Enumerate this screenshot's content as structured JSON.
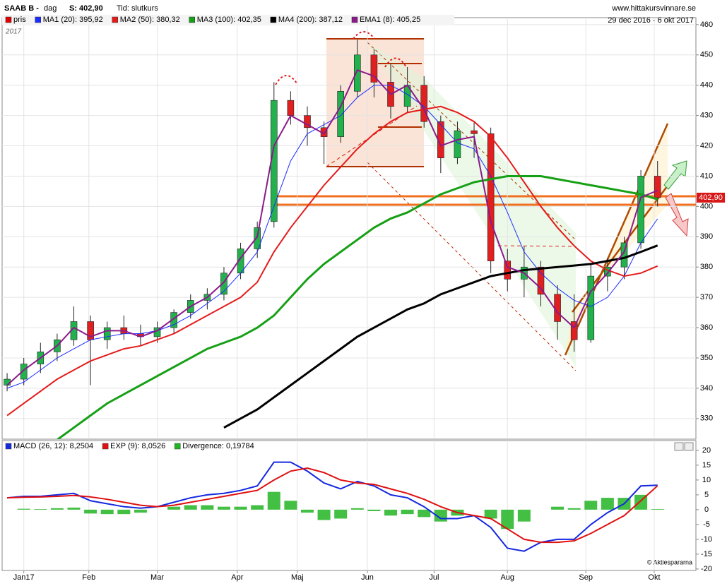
{
  "header": {
    "symbol": "SAAB B -",
    "period": "dag",
    "last": "S: 402,90",
    "mode": "Tid: slutkurs",
    "site": "www.hittakursvinnare.se",
    "range": "29 dec 2016 - 6 okt 2017",
    "year": "2017",
    "credit": "© Aktiespararna",
    "price_tag": "402,90"
  },
  "chart_data": [
    {
      "type": "candlestick",
      "x": [
        0,
        1,
        2,
        3,
        4,
        5,
        6,
        7,
        8,
        9,
        10,
        11,
        12,
        13,
        14,
        15,
        16,
        17,
        18,
        19,
        20,
        21,
        22,
        23,
        24,
        25,
        26,
        27,
        28,
        29,
        30,
        31,
        32,
        33,
        34,
        35,
        36,
        37,
        38,
        39
      ],
      "xlim": [
        -0.3,
        41.3
      ],
      "ylim": [
        323.2,
        462.3
      ],
      "yticks": [
        330,
        340,
        350,
        360,
        370,
        380,
        390,
        400,
        410,
        420,
        430,
        440,
        450,
        460
      ],
      "xticks": [
        {
          "value": 1,
          "label": "Jan17"
        },
        {
          "value": 4.9,
          "label": "Feb"
        },
        {
          "value": 9,
          "label": "Mar"
        },
        {
          "value": 13.8,
          "label": "Apr"
        },
        {
          "value": 17.4,
          "label": "Maj"
        },
        {
          "value": 21.6,
          "label": "Jun"
        },
        {
          "value": 25.6,
          "label": "Jul"
        },
        {
          "value": 30,
          "label": "Aug"
        },
        {
          "value": 34.7,
          "label": "Sep"
        },
        {
          "value": 38.8,
          "label": "Okt"
        }
      ],
      "grid": true,
      "series": [
        {
          "name": "pris",
          "color": "#e00000",
          "up_color": "#22b14c",
          "down_color": "#e02020",
          "open": [
            341,
            343,
            348,
            352,
            356,
            362,
            356,
            360,
            358,
            357,
            360,
            365,
            369,
            371,
            378,
            386,
            395,
            435,
            430,
            426,
            423,
            438,
            450,
            441,
            433,
            440,
            428,
            416,
            425,
            424,
            382,
            376,
            380,
            371,
            362,
            356,
            377,
            380,
            388,
            410
          ],
          "high": [
            345,
            350,
            355,
            358,
            367,
            364,
            362,
            364,
            361,
            362,
            366,
            371,
            373,
            380,
            388,
            395,
            441,
            438,
            433,
            428,
            440,
            455,
            452,
            447,
            446,
            443,
            430,
            428,
            428,
            426,
            386,
            387,
            382,
            374,
            371,
            381,
            383,
            390,
            412,
            415
          ],
          "low": [
            339,
            341,
            345,
            349,
            354,
            341,
            353,
            356,
            354,
            355,
            358,
            363,
            366,
            369,
            376,
            383,
            393,
            427,
            420,
            414,
            421,
            436,
            436,
            429,
            431,
            426,
            411,
            414,
            416,
            378,
            372,
            370,
            367,
            356,
            352,
            355,
            372,
            376,
            386,
            400
          ],
          "close": [
            343,
            348,
            352,
            356,
            362,
            356,
            360,
            358,
            357,
            360,
            365,
            369,
            371,
            378,
            386,
            393,
            435,
            430,
            426,
            423,
            438,
            450,
            441,
            433,
            440,
            428,
            416,
            425,
            424,
            382,
            376,
            380,
            371,
            362,
            356,
            377,
            380,
            388,
            410,
            402.9
          ]
        },
        {
          "name": "MA1 (20): 395,92",
          "color": "#1a2cff",
          "width": 1,
          "values": [
            340,
            342,
            346,
            350,
            353,
            356,
            357,
            358,
            358,
            359,
            361,
            364,
            368,
            372,
            378,
            385,
            400,
            415,
            424,
            427,
            430,
            436,
            440,
            440,
            437,
            433,
            427,
            421,
            419,
            410,
            398,
            385,
            378,
            373,
            369,
            367,
            370,
            377,
            388,
            395.92
          ]
        },
        {
          "name": "MA2 (50): 380,32",
          "color": "#e51b1b",
          "width": 2,
          "values": [
            331,
            335,
            339,
            343,
            346,
            349,
            351,
            353,
            354,
            356,
            358,
            361,
            364,
            367,
            370,
            375,
            385,
            393,
            400,
            407,
            413,
            419,
            424,
            428,
            431,
            432,
            433,
            431,
            428,
            423,
            416,
            408,
            400,
            393,
            387,
            382,
            379,
            377,
            378,
            380.32
          ]
        },
        {
          "name": "MA3 (100): 402,35",
          "color": "#16a016",
          "width": 3,
          "values": [
            null,
            null,
            null,
            323,
            327,
            331,
            335,
            338,
            341,
            344,
            347,
            350,
            353,
            355,
            357,
            360,
            364,
            370,
            376,
            381,
            385,
            389,
            393,
            396,
            398,
            401,
            404,
            406,
            408,
            409,
            410,
            410,
            410,
            409,
            408,
            407,
            406,
            405,
            404,
            402.35
          ]
        },
        {
          "name": "MA4 (200): 387,12",
          "color": "#000000",
          "width": 3,
          "values": [
            null,
            null,
            null,
            null,
            null,
            null,
            null,
            null,
            null,
            null,
            null,
            null,
            null,
            327,
            330,
            333,
            337,
            341,
            345,
            349,
            353,
            357,
            360,
            363,
            366,
            368,
            371,
            373,
            375,
            377,
            378,
            379,
            379.5,
            380,
            380.5,
            381,
            382,
            383,
            385,
            387.12
          ]
        },
        {
          "name": "EMA1 (8): 405,25",
          "color": "#8b1a8b",
          "width": 2,
          "values": [
            341,
            346,
            350,
            354,
            360,
            357,
            359,
            359,
            357,
            359,
            363,
            367,
            370,
            375,
            383,
            390,
            420,
            430,
            427,
            424,
            433,
            445,
            443,
            437,
            440,
            432,
            420,
            422,
            423,
            395,
            380,
            378,
            373,
            365,
            360,
            372,
            378,
            385,
            403,
            405.25
          ]
        }
      ]
    },
    {
      "type": "macd",
      "ylim": [
        -20.5,
        23.3
      ],
      "yticks": [
        -20,
        -15,
        -10,
        -5,
        0,
        5,
        10,
        15,
        20
      ],
      "series": [
        {
          "name": "MACD (26, 12): 8,2504",
          "color": "#1428e0",
          "type": "line",
          "values": [
            4,
            4.5,
            4.5,
            5,
            5.5,
            3,
            2,
            1,
            0.5,
            1,
            2.5,
            4,
            5,
            5.5,
            6.5,
            8,
            16,
            16,
            13,
            9,
            7,
            9.5,
            8,
            5,
            4,
            1,
            -3,
            -3,
            -2,
            -6,
            -13,
            -14,
            -11,
            -10,
            -10,
            -5,
            -1,
            2,
            8,
            8.25
          ]
        },
        {
          "name": "EXP (9): 8,0526",
          "color": "#e01010",
          "type": "line",
          "values": [
            4,
            4.2,
            4.3,
            4.5,
            4.8,
            4.3,
            3.5,
            2.5,
            1.5,
            1,
            1.5,
            2.5,
            3.5,
            4.5,
            5.5,
            6.5,
            10,
            13,
            14,
            12.5,
            10,
            9,
            8.5,
            7,
            5.5,
            3.5,
            1,
            -1,
            -2,
            -3,
            -6.5,
            -10,
            -11,
            -11,
            -10.5,
            -8,
            -5,
            -2,
            3,
            8.05
          ]
        },
        {
          "name": "Divergence: 0,19784",
          "color": "#22b422",
          "type": "bar",
          "values": [
            0,
            0.3,
            0.2,
            0.5,
            0.7,
            -1.3,
            -1.5,
            -1.5,
            -1,
            0,
            1,
            1.5,
            1.5,
            1,
            1,
            1.5,
            6,
            3,
            -1,
            -3.5,
            -3,
            0.5,
            -0.5,
            -2,
            -1.5,
            -2.5,
            -4,
            -2,
            0,
            -3,
            -6.5,
            -4,
            0,
            1,
            0.5,
            3,
            4,
            4,
            5,
            0.19784
          ]
        }
      ]
    }
  ]
}
